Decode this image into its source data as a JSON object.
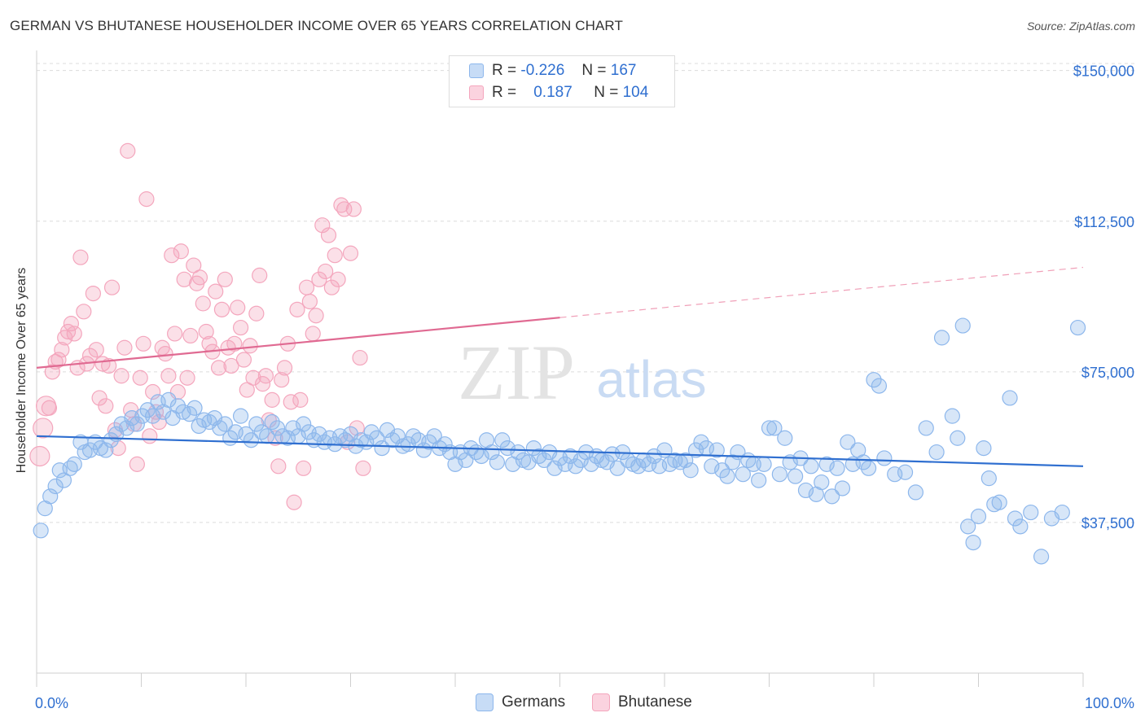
{
  "header": {
    "title": "GERMAN VS BHUTANESE HOUSEHOLDER INCOME OVER 65 YEARS CORRELATION CHART",
    "source": "Source: ZipAtlas.com"
  },
  "legend_top": {
    "rows": [
      {
        "r_label": "R =",
        "r_value": "-0.226",
        "n_label": "N =",
        "n_value": "167",
        "color": "#8db7ec"
      },
      {
        "r_label": "R =",
        "r_value": "0.187",
        "n_label": "N =",
        "n_value": "104",
        "color": "#f4a6bd"
      }
    ]
  },
  "legend_bottom": {
    "items": [
      {
        "label": "Germans",
        "color": "#8db7ec"
      },
      {
        "label": "Bhutanese",
        "color": "#f4a6bd"
      }
    ]
  },
  "watermark": {
    "zip": "ZIP",
    "atlas": "atlas"
  },
  "chart_data": {
    "type": "scatter",
    "title": "GERMAN VS BHUTANESE HOUSEHOLDER INCOME OVER 65 YEARS CORRELATION CHART",
    "xlabel": "",
    "ylabel": "Householder Income Over 65 years",
    "xlim": [
      0,
      100
    ],
    "ylim": [
      0,
      155000
    ],
    "x_tick_labels": [
      "0.0%",
      "100.0%"
    ],
    "y_ticks": [
      37500,
      75000,
      112500,
      150000
    ],
    "y_tick_labels": [
      "$37,500",
      "$75,000",
      "$112,500",
      "$150,000"
    ],
    "grid": "horizontal dashed",
    "legend_position": "top-center",
    "series": [
      {
        "name": "Germans",
        "color": "#8db7ec",
        "line_color": "#2f6fd0",
        "trend": {
          "x0": 0,
          "y0": 59000,
          "x1": 100,
          "y1": 51500
        },
        "points": [
          [
            0.4,
            35500
          ],
          [
            0.8,
            41000
          ],
          [
            1.3,
            44000
          ],
          [
            1.8,
            46500
          ],
          [
            2.2,
            50500
          ],
          [
            2.6,
            48000
          ],
          [
            3.2,
            51000
          ],
          [
            3.6,
            52000
          ],
          [
            4.2,
            57500
          ],
          [
            4.6,
            55000
          ],
          [
            5.1,
            55500
          ],
          [
            5.6,
            57500
          ],
          [
            6.1,
            56000
          ],
          [
            6.6,
            55500
          ],
          [
            7.1,
            58000
          ],
          [
            7.6,
            59500
          ],
          [
            8.1,
            62000
          ],
          [
            8.6,
            61000
          ],
          [
            9.1,
            63500
          ],
          [
            9.6,
            62000
          ],
          [
            10.1,
            64000
          ],
          [
            10.6,
            65500
          ],
          [
            11.1,
            64000
          ],
          [
            11.6,
            67500
          ],
          [
            12.1,
            65000
          ],
          [
            12.6,
            68000
          ],
          [
            13.0,
            63500
          ],
          [
            13.5,
            66500
          ],
          [
            14.0,
            65000
          ],
          [
            14.6,
            64500
          ],
          [
            15.1,
            66000
          ],
          [
            15.5,
            61500
          ],
          [
            16.0,
            63000
          ],
          [
            16.5,
            62500
          ],
          [
            17.0,
            63500
          ],
          [
            17.5,
            61000
          ],
          [
            18.0,
            62000
          ],
          [
            18.5,
            58500
          ],
          [
            19.0,
            60000
          ],
          [
            19.5,
            64000
          ],
          [
            20.0,
            59500
          ],
          [
            20.5,
            58000
          ],
          [
            21.0,
            62000
          ],
          [
            21.5,
            60000
          ],
          [
            22.0,
            59000
          ],
          [
            22.5,
            62500
          ],
          [
            23.0,
            61000
          ],
          [
            23.5,
            59000
          ],
          [
            24.0,
            58500
          ],
          [
            24.5,
            61000
          ],
          [
            25.0,
            59000
          ],
          [
            25.5,
            62000
          ],
          [
            26.0,
            60000
          ],
          [
            26.5,
            58000
          ],
          [
            27.0,
            59500
          ],
          [
            27.5,
            57500
          ],
          [
            28.0,
            58500
          ],
          [
            28.5,
            57000
          ],
          [
            29.0,
            59000
          ],
          [
            29.5,
            58000
          ],
          [
            30.0,
            59500
          ],
          [
            30.5,
            56500
          ],
          [
            31.0,
            58000
          ],
          [
            31.5,
            57500
          ],
          [
            32.0,
            60000
          ],
          [
            32.5,
            58500
          ],
          [
            33.0,
            56000
          ],
          [
            33.5,
            60500
          ],
          [
            34.0,
            58000
          ],
          [
            34.5,
            59000
          ],
          [
            35.0,
            56500
          ],
          [
            35.5,
            57000
          ],
          [
            36.0,
            59000
          ],
          [
            36.5,
            58000
          ],
          [
            37.0,
            55500
          ],
          [
            37.5,
            57500
          ],
          [
            38.0,
            59000
          ],
          [
            38.5,
            56000
          ],
          [
            39.0,
            57000
          ],
          [
            39.5,
            55000
          ],
          [
            40.0,
            52000
          ],
          [
            40.5,
            55000
          ],
          [
            41.0,
            53000
          ],
          [
            41.5,
            56000
          ],
          [
            42.0,
            55000
          ],
          [
            42.5,
            54000
          ],
          [
            43.0,
            58000
          ],
          [
            43.5,
            55000
          ],
          [
            44.0,
            52500
          ],
          [
            44.5,
            58000
          ],
          [
            45.0,
            56000
          ],
          [
            45.5,
            52000
          ],
          [
            46.0,
            55000
          ],
          [
            46.5,
            53000
          ],
          [
            47.0,
            52500
          ],
          [
            47.5,
            56000
          ],
          [
            48.0,
            54000
          ],
          [
            48.5,
            53000
          ],
          [
            49.0,
            55000
          ],
          [
            49.5,
            51000
          ],
          [
            50.0,
            53500
          ],
          [
            50.5,
            52000
          ],
          [
            51.0,
            54000
          ],
          [
            51.5,
            51500
          ],
          [
            52.0,
            53000
          ],
          [
            52.5,
            55000
          ],
          [
            53.0,
            52000
          ],
          [
            53.5,
            54000
          ],
          [
            54.0,
            53000
          ],
          [
            54.5,
            52500
          ],
          [
            55.0,
            54500
          ],
          [
            55.5,
            51000
          ],
          [
            56.0,
            55000
          ],
          [
            56.5,
            53000
          ],
          [
            57.0,
            52000
          ],
          [
            57.5,
            51500
          ],
          [
            58.0,
            53000
          ],
          [
            58.5,
            52000
          ],
          [
            59.0,
            54000
          ],
          [
            59.5,
            51500
          ],
          [
            60.0,
            55500
          ],
          [
            60.5,
            52000
          ],
          [
            61.0,
            53000
          ],
          [
            61.5,
            52500
          ],
          [
            62.0,
            53000
          ],
          [
            62.5,
            50500
          ],
          [
            63.0,
            55500
          ],
          [
            63.5,
            57500
          ],
          [
            64.0,
            56000
          ],
          [
            64.5,
            51500
          ],
          [
            65.0,
            55500
          ],
          [
            65.5,
            50500
          ],
          [
            66.0,
            49000
          ],
          [
            66.5,
            52500
          ],
          [
            67.0,
            55000
          ],
          [
            67.5,
            49500
          ],
          [
            68.0,
            53000
          ],
          [
            68.5,
            52000
          ],
          [
            69.0,
            48000
          ],
          [
            69.5,
            52000
          ],
          [
            70.0,
            61000
          ],
          [
            70.5,
            61000
          ],
          [
            71.0,
            49500
          ],
          [
            71.5,
            58500
          ],
          [
            72.0,
            52500
          ],
          [
            72.5,
            49000
          ],
          [
            73.0,
            53500
          ],
          [
            73.5,
            45500
          ],
          [
            74.0,
            51500
          ],
          [
            74.5,
            44500
          ],
          [
            75.0,
            47500
          ],
          [
            75.5,
            52000
          ],
          [
            76.0,
            44000
          ],
          [
            76.5,
            51000
          ],
          [
            77.0,
            46000
          ],
          [
            77.5,
            57500
          ],
          [
            78.0,
            52000
          ],
          [
            78.5,
            55500
          ],
          [
            79.0,
            52500
          ],
          [
            79.5,
            51000
          ],
          [
            80.0,
            73000
          ],
          [
            80.5,
            71500
          ],
          [
            81.0,
            53500
          ],
          [
            82.0,
            49500
          ],
          [
            83.0,
            50000
          ],
          [
            84.0,
            45000
          ],
          [
            85.0,
            61000
          ],
          [
            86.0,
            55000
          ],
          [
            86.5,
            83500
          ],
          [
            87.5,
            64000
          ],
          [
            88.0,
            58500
          ],
          [
            88.5,
            86500
          ],
          [
            89.0,
            36500
          ],
          [
            89.5,
            32500
          ],
          [
            90.0,
            39000
          ],
          [
            90.5,
            56000
          ],
          [
            91.0,
            48500
          ],
          [
            91.5,
            42000
          ],
          [
            92.0,
            42500
          ],
          [
            93.0,
            68500
          ],
          [
            93.5,
            38500
          ],
          [
            94.0,
            36500
          ],
          [
            95.0,
            40000
          ],
          [
            96.0,
            29000
          ],
          [
            97.0,
            38500
          ],
          [
            98.0,
            40000
          ],
          [
            99.5,
            86000
          ]
        ]
      },
      {
        "name": "Bhutanese",
        "color": "#f4a6bd",
        "line_color": "#e06a92",
        "trend": {
          "x0": 0,
          "y0": 76000,
          "x1": 50,
          "y1": 88500
        },
        "trend_dashed": {
          "x0": 50,
          "y0": 88500,
          "x1": 100,
          "y1": 101000
        },
        "points": [
          [
            0.3,
            54000
          ],
          [
            0.6,
            61000
          ],
          [
            0.9,
            66500
          ],
          [
            1.2,
            66000
          ],
          [
            1.5,
            75000
          ],
          [
            1.8,
            77500
          ],
          [
            2.1,
            78000
          ],
          [
            2.4,
            80500
          ],
          [
            2.7,
            83500
          ],
          [
            3.0,
            85000
          ],
          [
            3.3,
            87000
          ],
          [
            3.6,
            84500
          ],
          [
            3.9,
            76000
          ],
          [
            4.2,
            103500
          ],
          [
            4.5,
            90000
          ],
          [
            4.8,
            77000
          ],
          [
            5.1,
            79000
          ],
          [
            5.4,
            94500
          ],
          [
            5.7,
            80500
          ],
          [
            6.0,
            68500
          ],
          [
            6.3,
            77000
          ],
          [
            6.6,
            66500
          ],
          [
            6.9,
            76500
          ],
          [
            7.2,
            96000
          ],
          [
            7.5,
            60500
          ],
          [
            7.8,
            56000
          ],
          [
            8.1,
            74000
          ],
          [
            8.4,
            81000
          ],
          [
            8.7,
            130000
          ],
          [
            9.0,
            65500
          ],
          [
            9.3,
            62000
          ],
          [
            9.6,
            52000
          ],
          [
            9.9,
            73500
          ],
          [
            10.2,
            82000
          ],
          [
            10.5,
            118000
          ],
          [
            10.8,
            59000
          ],
          [
            11.1,
            70000
          ],
          [
            11.4,
            65000
          ],
          [
            11.7,
            62500
          ],
          [
            12.0,
            81000
          ],
          [
            12.3,
            79500
          ],
          [
            12.6,
            74000
          ],
          [
            12.9,
            104000
          ],
          [
            13.2,
            84500
          ],
          [
            13.5,
            70000
          ],
          [
            13.8,
            105000
          ],
          [
            14.1,
            98000
          ],
          [
            14.4,
            73500
          ],
          [
            14.7,
            84000
          ],
          [
            15.0,
            101500
          ],
          [
            15.3,
            97000
          ],
          [
            15.6,
            98500
          ],
          [
            15.9,
            92000
          ],
          [
            16.2,
            85000
          ],
          [
            16.5,
            82000
          ],
          [
            16.8,
            80000
          ],
          [
            17.1,
            95000
          ],
          [
            17.4,
            76000
          ],
          [
            17.7,
            90500
          ],
          [
            18.0,
            98000
          ],
          [
            18.3,
            81000
          ],
          [
            18.6,
            76500
          ],
          [
            18.9,
            82000
          ],
          [
            19.2,
            91000
          ],
          [
            19.5,
            86000
          ],
          [
            19.8,
            78000
          ],
          [
            20.1,
            70500
          ],
          [
            20.4,
            81500
          ],
          [
            20.7,
            73500
          ],
          [
            21.0,
            89500
          ],
          [
            21.3,
            99000
          ],
          [
            21.6,
            72000
          ],
          [
            21.9,
            74000
          ],
          [
            22.2,
            63000
          ],
          [
            22.5,
            68000
          ],
          [
            22.8,
            58500
          ],
          [
            23.1,
            51500
          ],
          [
            23.4,
            73000
          ],
          [
            23.7,
            76000
          ],
          [
            24.0,
            82000
          ],
          [
            24.3,
            67500
          ],
          [
            24.6,
            42500
          ],
          [
            24.9,
            90500
          ],
          [
            25.2,
            68000
          ],
          [
            25.5,
            51000
          ],
          [
            25.8,
            96000
          ],
          [
            26.1,
            92500
          ],
          [
            26.4,
            84500
          ],
          [
            26.7,
            89000
          ],
          [
            27.0,
            98000
          ],
          [
            27.3,
            111500
          ],
          [
            27.6,
            100000
          ],
          [
            27.9,
            109000
          ],
          [
            28.2,
            96000
          ],
          [
            28.5,
            104000
          ],
          [
            28.8,
            98000
          ],
          [
            29.1,
            116500
          ],
          [
            29.4,
            115500
          ],
          [
            29.7,
            57500
          ],
          [
            30.0,
            104500
          ],
          [
            30.3,
            115500
          ],
          [
            30.6,
            61000
          ],
          [
            30.9,
            78500
          ],
          [
            31.2,
            51000
          ]
        ]
      }
    ]
  }
}
